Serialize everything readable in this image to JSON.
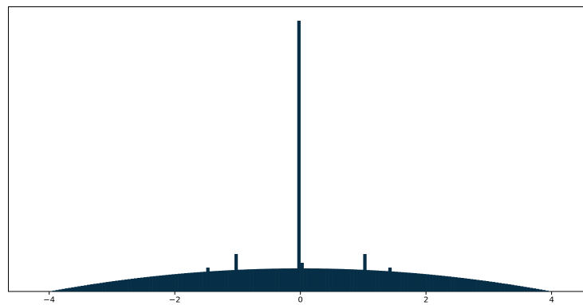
{
  "chart_data": {
    "type": "histogram",
    "bins": [
      -4,
      -3.95,
      -3.9,
      -3.85,
      -3.8,
      -3.75,
      -3.7,
      -3.65,
      -3.6,
      -3.55,
      -3.5,
      -3.45,
      -3.4,
      -3.35,
      -3.3,
      -3.25,
      -3.2,
      -3.15,
      -3.1,
      -3.05,
      -3,
      -2.95,
      -2.9,
      -2.85,
      -2.8,
      -2.75,
      -2.7,
      -2.65,
      -2.6,
      -2.55,
      -2.5,
      -2.45,
      -2.4,
      -2.35,
      -2.3,
      -2.25,
      -2.2,
      -2.15,
      -2.1,
      -2.05,
      -2,
      -1.95,
      -1.9,
      -1.85,
      -1.8,
      -1.75,
      -1.7,
      -1.65,
      -1.6,
      -1.55,
      -1.5,
      -1.45,
      -1.4,
      -1.35,
      -1.3,
      -1.25,
      -1.2,
      -1.15,
      -1.1,
      -1.05,
      -1,
      -0.95,
      -0.9,
      -0.85,
      -0.8,
      -0.75,
      -0.7,
      -0.65,
      -0.6,
      -0.55,
      -0.5,
      -0.45,
      -0.4,
      -0.35,
      -0.3,
      -0.25,
      -0.2,
      -0.15,
      -0.1,
      -0.05,
      0,
      0.05,
      0.1,
      0.15,
      0.2,
      0.25,
      0.3,
      0.35,
      0.4,
      0.45,
      0.5,
      0.55,
      0.6,
      0.65,
      0.7,
      0.75,
      0.8,
      0.85,
      0.9,
      0.95,
      1,
      1.05,
      1.1,
      1.15,
      1.2,
      1.25,
      1.3,
      1.35,
      1.4,
      1.45,
      1.5,
      1.55,
      1.6,
      1.65,
      1.7,
      1.75,
      1.8,
      1.85,
      1.9,
      1.95,
      2,
      2.05,
      2.1,
      2.15,
      2.2,
      2.25,
      2.3,
      2.35,
      2.4,
      2.45,
      2.5,
      2.55,
      2.6,
      2.65,
      2.7,
      2.75,
      2.8,
      2.85,
      2.9,
      2.95,
      3,
      3.05,
      3.1,
      3.15,
      3.2,
      3.25,
      3.3,
      3.35,
      3.4,
      3.45,
      3.5,
      3.55,
      3.6,
      3.65,
      3.7,
      3.75,
      3.8,
      3.85,
      3.9,
      3.95,
      4
    ],
    "values": [
      0.4,
      1.1,
      1.8,
      2.5,
      3.2,
      3.9,
      4.5,
      5.2,
      5.8,
      6.5,
      7.1,
      7.7,
      8.4,
      9.0,
      9.6,
      10.1,
      10.7,
      11.3,
      11.9,
      12.4,
      13.0,
      13.5,
      14.0,
      14.5,
      15.0,
      15.5,
      16.0,
      16.5,
      17.0,
      17.4,
      17.9,
      18.3,
      18.8,
      19.2,
      19.6,
      20.0,
      20.4,
      20.8,
      21.2,
      21.6,
      21.9,
      22.3,
      22.6,
      23.0,
      23.3,
      23.6,
      23.9,
      24.2,
      24.5,
      24.8,
      30,
      25.3,
      25.6,
      25.8,
      26.0,
      26.3,
      26.5,
      26.7,
      26.9,
      47,
      27.3,
      27.4,
      27.6,
      27.8,
      27.9,
      28.0,
      28.2,
      28.3,
      28.4,
      28.5,
      28.6,
      28.7,
      28.7,
      28.8,
      28.9,
      28.9,
      28.9,
      29.0,
      29.0,
      340,
      36,
      29.0,
      29.0,
      28.9,
      28.9,
      28.9,
      28.8,
      28.7,
      28.7,
      28.6,
      28.5,
      28.4,
      28.3,
      28.2,
      28.0,
      27.9,
      27.8,
      27.6,
      27.4,
      27.3,
      47,
      26.9,
      26.7,
      26.5,
      26.3,
      26.0,
      25.8,
      25.6,
      30,
      25.1,
      24.8,
      24.5,
      24.2,
      23.9,
      23.6,
      23.3,
      23.0,
      22.6,
      22.3,
      21.9,
      21.6,
      21.2,
      20.8,
      20.4,
      20.0,
      19.6,
      19.2,
      18.8,
      18.3,
      17.9,
      17.4,
      17.0,
      16.5,
      16.0,
      15.5,
      15.0,
      14.5,
      14.0,
      13.5,
      13.0,
      12.4,
      11.9,
      11.3,
      10.7,
      10.1,
      9.6,
      9.0,
      8.4,
      7.7,
      7.1,
      6.5,
      5.8,
      5.2,
      4.5,
      3.9,
      3.2,
      2.5,
      1.8,
      1.1,
      0.4
    ],
    "color": "#062f47",
    "xlim": [
      -4.65,
      4.5
    ],
    "xticks": [
      {
        "value": -4,
        "label": "−4"
      },
      {
        "value": -2,
        "label": "−2"
      },
      0,
      2,
      4
    ],
    "ylim": [
      0,
      358
    ]
  }
}
